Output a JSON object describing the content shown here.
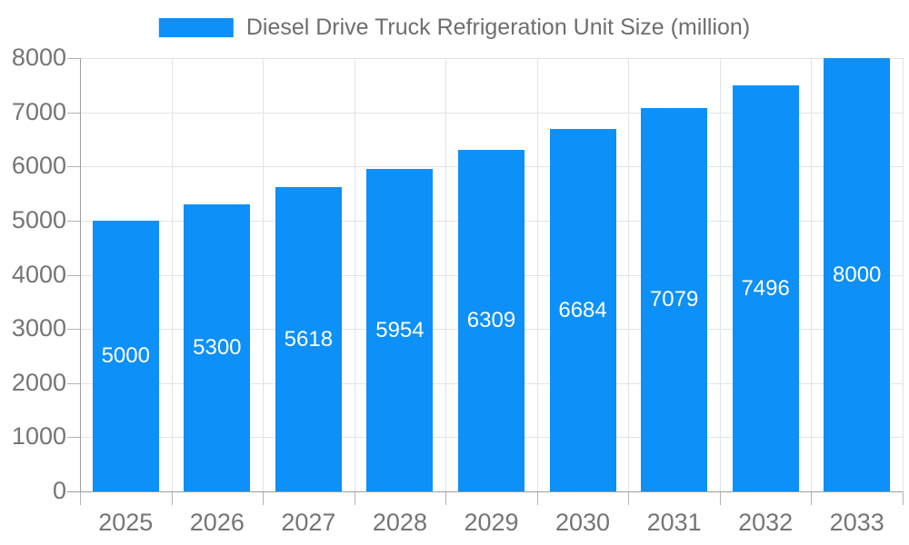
{
  "chart_data": {
    "type": "bar",
    "title": "Diesel Drive Truck Refrigeration Unit Size (million)",
    "categories": [
      "2025",
      "2026",
      "2027",
      "2028",
      "2029",
      "2030",
      "2031",
      "2032",
      "2033"
    ],
    "values": [
      5000,
      5300,
      5618,
      5954,
      6309,
      6684,
      7079,
      7496,
      8000
    ],
    "series": [
      {
        "name": "Diesel Drive Truck Refrigeration Unit Size (million)",
        "values": [
          5000,
          5300,
          5618,
          5954,
          6309,
          6684,
          7079,
          7496,
          8000
        ]
      }
    ],
    "xlabel": "",
    "ylabel": "",
    "ylim": [
      0,
      8000
    ],
    "ytick_step": 1000,
    "yticks": [
      "0",
      "1000",
      "2000",
      "3000",
      "4000",
      "5000",
      "6000",
      "7000",
      "8000"
    ],
    "grid": true,
    "legend_position": "top-center",
    "bar_labels_inside": true,
    "colors": {
      "bar": "#0d90f7",
      "bar_label": "#ffffff",
      "grid": "#e3e3e3",
      "axis_line": "#9e9e9e",
      "tick_mark": "#b3b3b3",
      "axis_text": "#757575",
      "title_text": "#6e6e6e",
      "background": "#ffffff"
    }
  }
}
